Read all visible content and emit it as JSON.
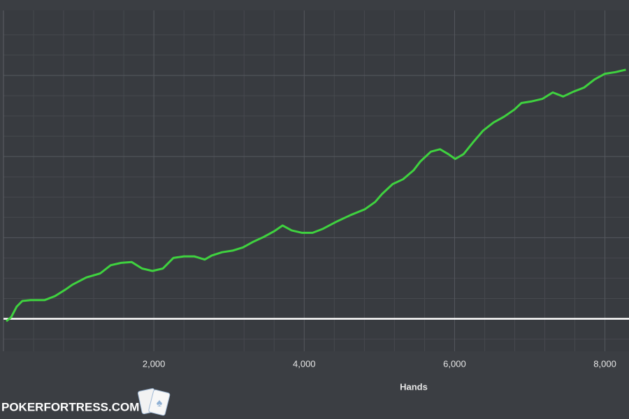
{
  "chart_data": {
    "type": "line",
    "xlabel": "Hands",
    "brand": "POKERFORTRESS.COM",
    "xlim": [
      0,
      8320
    ],
    "xticks": [
      {
        "value": 2000,
        "label": "2,000"
      },
      {
        "value": 4000,
        "label": "4,000"
      },
      {
        "value": 6000,
        "label": "6,000"
      },
      {
        "value": 8000,
        "label": "8,000"
      }
    ],
    "xticks_minor": [
      400,
      800,
      1200,
      1600,
      2400,
      2800,
      3200,
      3600,
      4400,
      4800,
      5200,
      5600,
      6400,
      6800,
      7200,
      7600
    ],
    "ylim": [
      -40,
      380
    ],
    "yticks": [
      0,
      100,
      200,
      300
    ],
    "yticks_minor": [
      -25,
      25,
      50,
      75,
      125,
      150,
      175,
      225,
      250,
      275,
      325,
      350
    ],
    "grid": true,
    "zero_line_color": "#ffffff",
    "series": [
      {
        "color": "#3fd23f",
        "x": [
          37,
          102,
          176,
          250,
          361,
          546,
          685,
          824,
          917,
          1102,
          1287,
          1426,
          1565,
          1704,
          1843,
          1981,
          2120,
          2259,
          2398,
          2537,
          2676,
          2769,
          2907,
          3046,
          3185,
          3324,
          3463,
          3602,
          3713,
          3833,
          3972,
          4111,
          4250,
          4435,
          4620,
          4806,
          4944,
          5037,
          5176,
          5315,
          5454,
          5546,
          5685,
          5806,
          5917,
          6009,
          6120,
          6241,
          6380,
          6519,
          6657,
          6796,
          6889,
          7028,
          7167,
          7306,
          7444,
          7583,
          7722,
          7861,
          8000,
          8139,
          8278
        ],
        "values": [
          -3,
          2,
          15,
          22,
          23,
          23,
          28,
          36,
          42,
          51,
          56,
          66,
          69,
          70,
          62,
          59,
          62,
          75,
          77,
          77,
          73,
          78,
          82,
          84,
          88,
          95,
          101,
          108,
          115,
          109,
          106,
          106,
          111,
          120,
          128,
          135,
          144,
          154,
          166,
          172,
          183,
          194,
          206,
          209,
          203,
          197,
          203,
          217,
          232,
          242,
          249,
          258,
          266,
          268,
          271,
          279,
          274,
          280,
          285,
          295,
          302,
          304,
          307
        ]
      }
    ]
  }
}
